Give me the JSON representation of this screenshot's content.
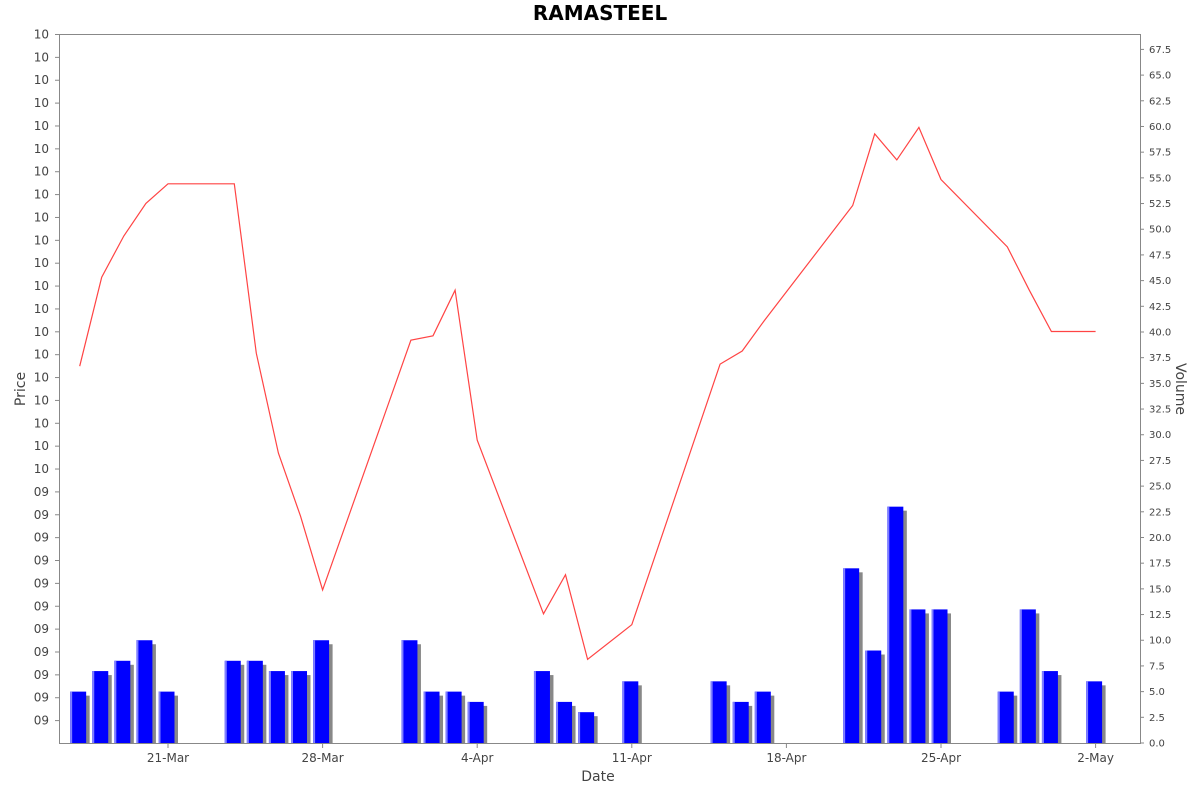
{
  "chart_data": {
    "type": "line",
    "title": "RAMASTEEL",
    "xlabel": "Date",
    "ylabel_left": "Price",
    "ylabel_right": "Volume",
    "x_tick_labels": [
      "21-Mar",
      "28-Mar",
      "4-Apr",
      "11-Apr",
      "18-Apr",
      "25-Apr",
      "2-May"
    ],
    "y_left_tick_labels": [
      "10",
      "10",
      "10",
      "10",
      "10",
      "10",
      "10",
      "10",
      "10",
      "10",
      "10",
      "10",
      "10",
      "10",
      "10",
      "10",
      "10",
      "10",
      "10",
      "10",
      "09",
      "09",
      "09",
      "09",
      "09",
      "09",
      "09",
      "09",
      "09",
      "09",
      "09"
    ],
    "y_right_ticks": [
      "67.5",
      "65.0",
      "62.5",
      "60.0",
      "57.5",
      "55.0",
      "52.5",
      "50.0",
      "47.5",
      "45.0",
      "42.5",
      "40.0",
      "37.5",
      "35.0",
      "32.5",
      "30.0",
      "27.5",
      "25.0",
      "22.5",
      "20.0",
      "17.5",
      "15.0",
      "12.5",
      "10.0",
      "7.5",
      "5.0",
      "2.5",
      "0.0"
    ],
    "y_right_range": [
      0,
      69
    ],
    "price_series": {
      "name": "Price",
      "color": "#ff4444",
      "x": [
        "2024-03-17",
        "2024-03-18",
        "2024-03-19",
        "2024-03-20",
        "2024-03-21",
        "2024-03-24",
        "2024-03-25",
        "2024-03-26",
        "2024-03-27",
        "2024-03-28",
        "2024-04-01",
        "2024-04-02",
        "2024-04-03",
        "2024-04-04",
        "2024-04-07",
        "2024-04-08",
        "2024-04-09",
        "2024-04-11",
        "2024-04-15",
        "2024-04-16",
        "2024-04-17",
        "2024-04-21",
        "2024-04-22",
        "2024-04-23",
        "2024-04-24",
        "2024-04-25",
        "2024-04-28",
        "2024-04-29",
        "2024-04-30",
        "2024-05-02"
      ],
      "values": [
        10.057,
        10.098,
        10.117,
        10.132,
        10.141,
        10.141,
        10.063,
        10.017,
        9.988,
        9.954,
        10.069,
        10.071,
        10.092,
        10.023,
        9.943,
        9.961,
        9.922,
        9.938,
        10.058,
        10.064,
        10.078,
        10.131,
        10.164,
        10.152,
        10.167,
        10.143,
        10.112,
        10.092,
        10.073,
        10.073
      ]
    },
    "volume_series": {
      "name": "Volume",
      "color": "#0000ff",
      "x": [
        "2024-03-17",
        "2024-03-18",
        "2024-03-19",
        "2024-03-20",
        "2024-03-21",
        "2024-03-24",
        "2024-03-25",
        "2024-03-26",
        "2024-03-27",
        "2024-03-28",
        "2024-04-01",
        "2024-04-02",
        "2024-04-03",
        "2024-04-04",
        "2024-04-07",
        "2024-04-08",
        "2024-04-09",
        "2024-04-11",
        "2024-04-15",
        "2024-04-16",
        "2024-04-17",
        "2024-04-21",
        "2024-04-22",
        "2024-04-23",
        "2024-04-24",
        "2024-04-25",
        "2024-04-28",
        "2024-04-29",
        "2024-04-30",
        "2024-05-02"
      ],
      "values": [
        5,
        7,
        8,
        10,
        5,
        8,
        8,
        7,
        7,
        10,
        10,
        5,
        5,
        4,
        7,
        4,
        3,
        6,
        6,
        4,
        5,
        17,
        9,
        23,
        13,
        13,
        5,
        13,
        7,
        6
      ]
    },
    "grid": false,
    "legend": "none"
  }
}
